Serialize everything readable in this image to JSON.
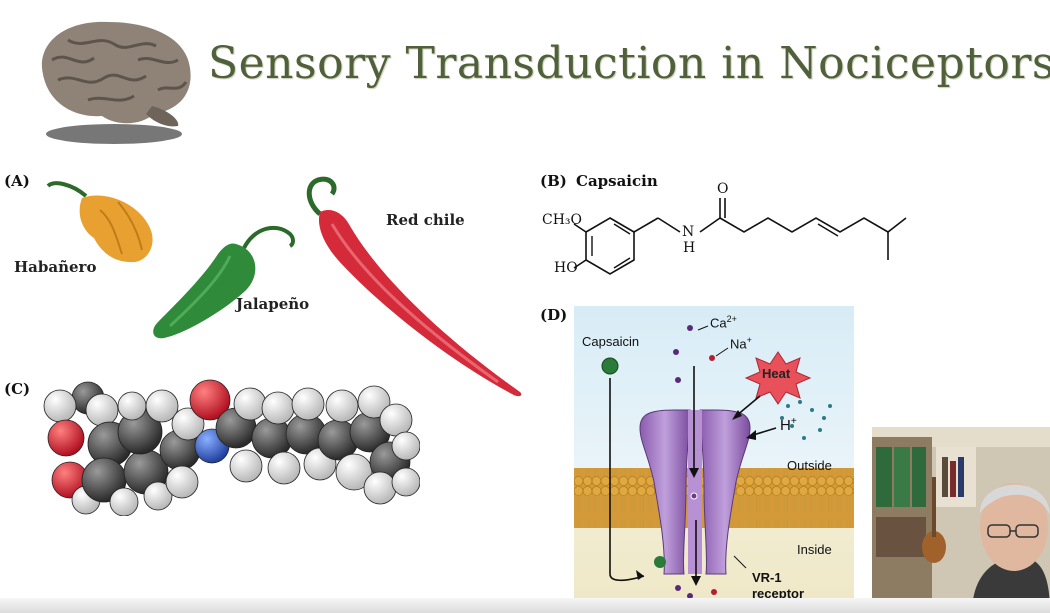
{
  "slide": {
    "title": "Sensory Transduction in Nociceptors"
  },
  "panel_a": {
    "label": "(A)",
    "peppers": [
      "Habañero",
      "Jalapeño",
      "Red chile"
    ]
  },
  "panel_b": {
    "label": "(B)",
    "name": "Capsaicin",
    "groups": {
      "methoxy": "CH₃O",
      "hydroxyl": "HO",
      "nitrogen": "N",
      "hydrogen": "H",
      "oxygen": "O"
    }
  },
  "panel_c": {
    "label": "(C)"
  },
  "panel_d": {
    "label": "(D)",
    "capsaicin": "Capsaicin",
    "ca_ion": "Ca",
    "ca_charge": "2+",
    "na_ion": "Na",
    "na_charge": "+",
    "heat": "Heat",
    "proton": "H",
    "proton_charge": "+",
    "outside": "Outside",
    "inside": "Inside",
    "receptor_line1": "VR-1",
    "receptor_line2": "receptor"
  },
  "colors": {
    "title": "#50603a",
    "habanero": "#e8a030",
    "jalapeno": "#2f8a3a",
    "red_chile": "#d42a3a",
    "channel": "#9d6fc0",
    "membrane": "#d9a440",
    "heat_burst": "#e8505a",
    "outside_bg": "#d8ecf6"
  },
  "icons": [
    "brain-icon",
    "webcam-presenter-icon"
  ]
}
